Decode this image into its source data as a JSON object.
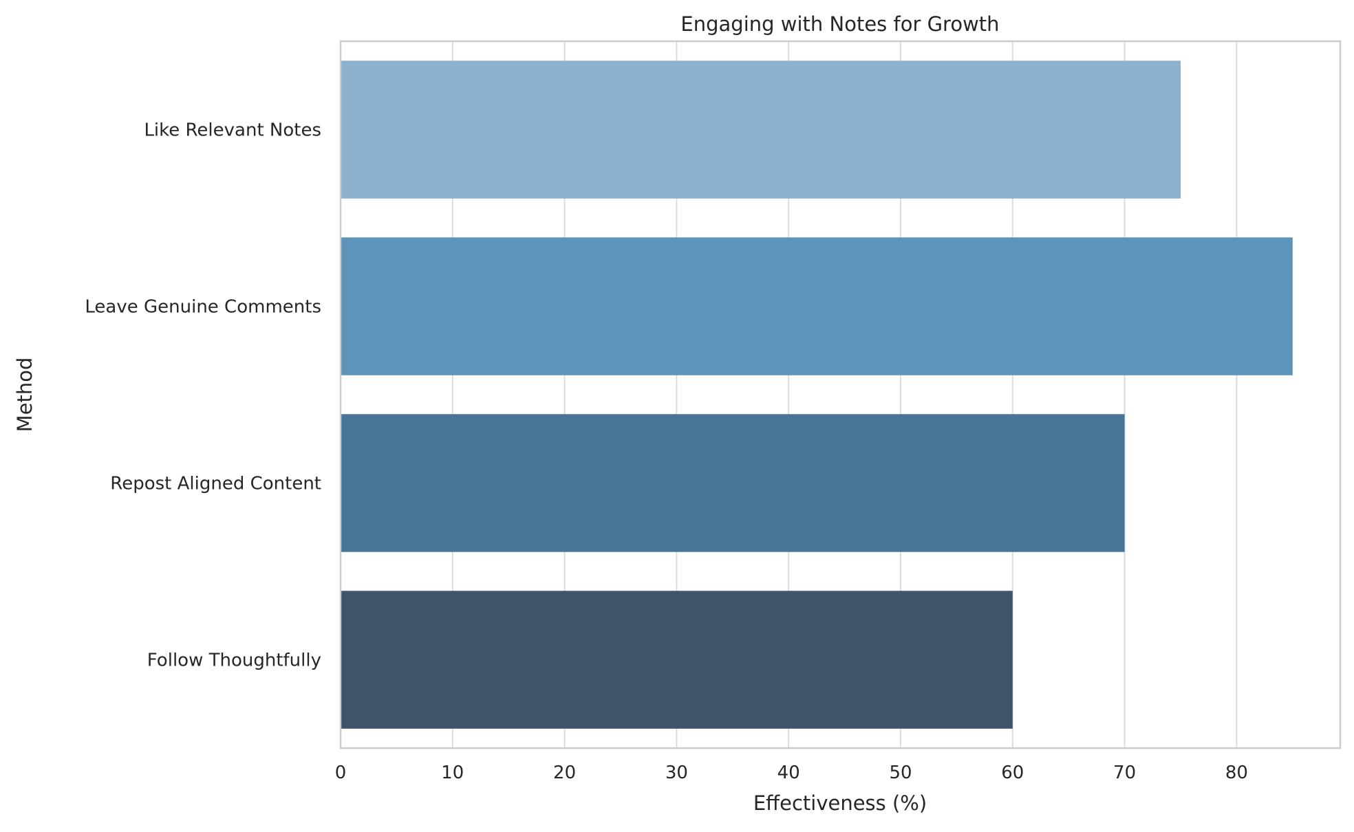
{
  "chart_data": {
    "type": "bar",
    "orientation": "horizontal",
    "title": "Engaging with Notes for Growth",
    "xlabel": "Effectiveness (%)",
    "ylabel": "Method",
    "categories": [
      "Like Relevant Notes",
      "Leave Genuine Comments",
      "Repost Aligned Content",
      "Follow Thoughtfully"
    ],
    "values": [
      75,
      85,
      70,
      60
    ],
    "colors": [
      "#8bb1ce",
      "#5e94bb",
      "#477596",
      "#3e546a"
    ],
    "xlim": [
      0,
      89.25
    ],
    "xticks": [
      0,
      10,
      20,
      30,
      40,
      50,
      60,
      70,
      80
    ],
    "grid": true,
    "legend": false
  }
}
